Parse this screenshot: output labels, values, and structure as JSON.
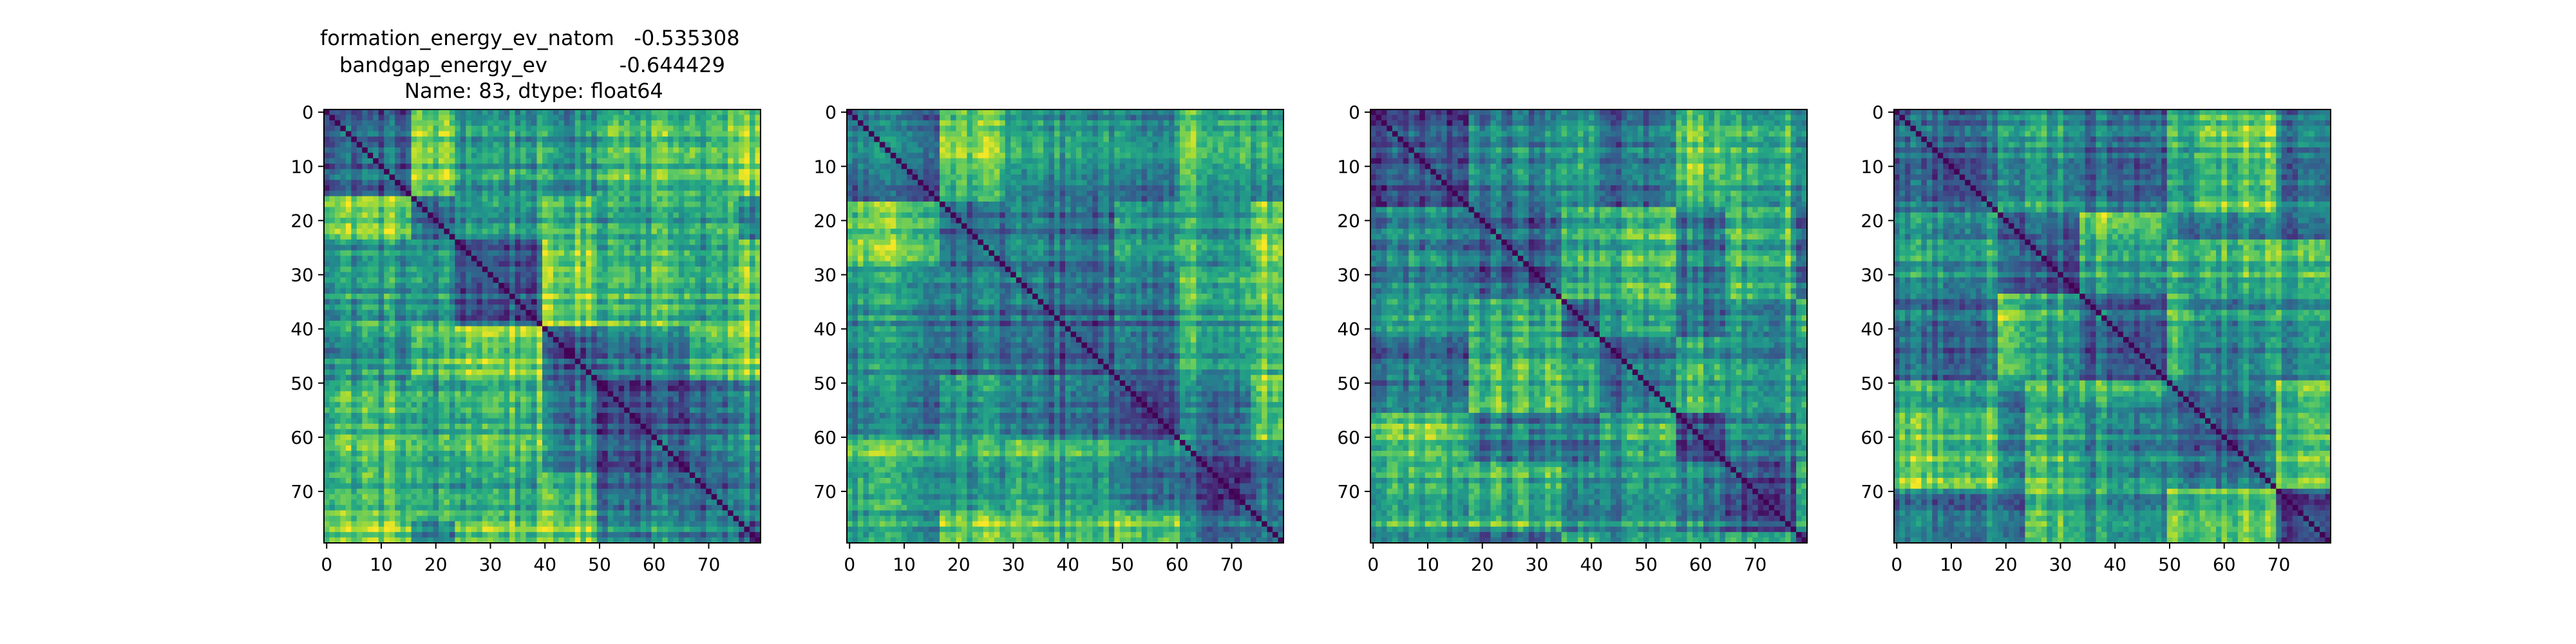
{
  "figure": {
    "title_lines": [
      "formation_energy_ev_natom   -0.535308",
      "bandgap_energy_ev           -0.644429",
      "Name: 83, dtype: float64"
    ]
  },
  "chart_data": [
    {
      "type": "heatmap",
      "title": "formation_energy_ev_natom   -0.535308\nbandgap_energy_ev           -0.644429\nName: 83, dtype: float64",
      "xlabel": "",
      "ylabel": "",
      "size": 80,
      "xticks": [
        0,
        10,
        20,
        30,
        40,
        50,
        60,
        70
      ],
      "yticks": [
        0,
        10,
        20,
        30,
        40,
        50,
        60,
        70
      ],
      "colormap": "viridis",
      "diagonal": "dark (minimum value)",
      "description_of_structure": "symmetric distance-like matrix with block structure"
    },
    {
      "type": "heatmap",
      "title": "",
      "size": 80,
      "xticks": [
        0,
        10,
        20,
        30,
        40,
        50,
        60,
        70
      ],
      "yticks": [
        0,
        10,
        20,
        30,
        40,
        50,
        60,
        70
      ],
      "colormap": "viridis",
      "diagonal": "dark (minimum value)"
    },
    {
      "type": "heatmap",
      "title": "",
      "size": 80,
      "xticks": [
        0,
        10,
        20,
        30,
        40,
        50,
        60,
        70
      ],
      "yticks": [
        0,
        10,
        20,
        30,
        40,
        50,
        60,
        70
      ],
      "colormap": "viridis",
      "diagonal": "dark (minimum value)"
    },
    {
      "type": "heatmap",
      "title": "",
      "size": 80,
      "xticks": [
        0,
        10,
        20,
        30,
        40,
        50,
        60,
        70
      ],
      "yticks": [
        0,
        10,
        20,
        30,
        40,
        50,
        60,
        70
      ],
      "colormap": "viridis",
      "diagonal": "dark (minimum value)"
    }
  ]
}
